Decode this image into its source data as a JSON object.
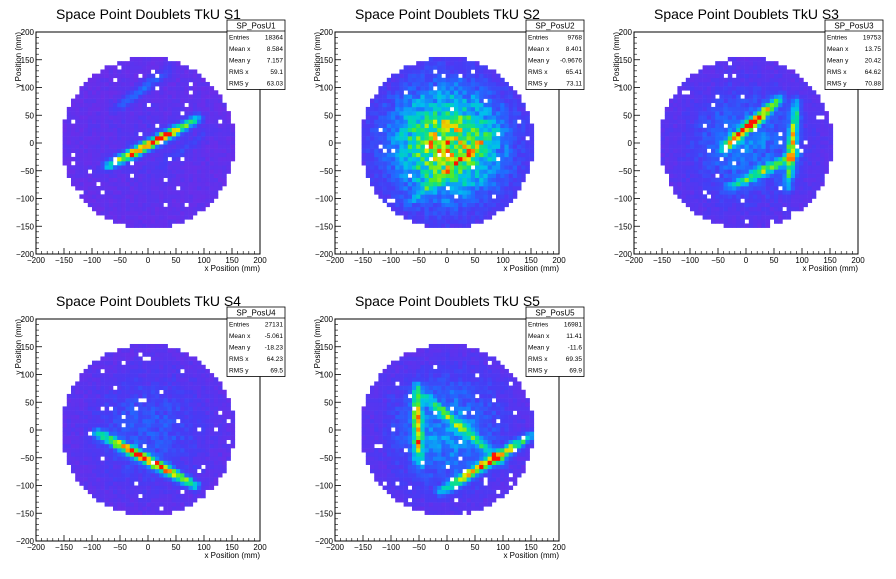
{
  "chart_data": [
    {
      "type": "heatmap",
      "title": "Space Point Doublets TkU S1",
      "xlabel": "x Position (mm)",
      "ylabel": "y Position (mm)",
      "xlim": [
        -200,
        200
      ],
      "ylim": [
        -200,
        200
      ],
      "xticks": [
        "−200",
        "−150",
        "−100",
        "−50",
        "0",
        "50",
        "100",
        "150",
        "200"
      ],
      "yticks": [
        "−200",
        "−150",
        "−100",
        "−50",
        "0",
        "50",
        "100",
        "150",
        "200"
      ],
      "stats": {
        "name": "SP_PosU1",
        "rows": [
          {
            "label": "Entries",
            "value": "18364"
          },
          {
            "label": "Mean x",
            "value": "8.584"
          },
          {
            "label": "Mean y",
            "value": "7.157"
          },
          {
            "label": "RMS x",
            "value": "59.1"
          },
          {
            "label": "RMS y",
            "value": "63.03"
          }
        ]
      },
      "features": [
        {
          "x1": -70,
          "y1": -40,
          "x2": 90,
          "y2": 45,
          "peak": 1.0
        },
        {
          "x1": -60,
          "y1": 60,
          "x2": 40,
          "y2": 135,
          "peak": 0.25
        },
        {
          "x1": -90,
          "y1": -50,
          "x2": 60,
          "y2": 20,
          "peak": 0.12
        },
        {
          "x1": 20,
          "y1": -40,
          "x2": 120,
          "y2": 30,
          "peak": 0.12
        }
      ],
      "center_level": 0.05
    },
    {
      "type": "heatmap",
      "title": "Space Point Doublets TkU S2",
      "xlabel": "x Position (mm)",
      "ylabel": "y Position (mm)",
      "xlim": [
        -200,
        200
      ],
      "ylim": [
        -200,
        200
      ],
      "xticks": [
        "−200",
        "−150",
        "−100",
        "−50",
        "0",
        "50",
        "100",
        "150",
        "200"
      ],
      "yticks": [
        "−200",
        "−150",
        "−100",
        "−50",
        "0",
        "50",
        "100",
        "150",
        "200"
      ],
      "stats": {
        "name": "SP_PosU2",
        "rows": [
          {
            "label": "Entries",
            "value": "9768"
          },
          {
            "label": "Mean x",
            "value": "8.401"
          },
          {
            "label": "Mean y",
            "value": "-0.9676"
          },
          {
            "label": "RMS x",
            "value": "65.41"
          },
          {
            "label": "RMS y",
            "value": "73.11"
          }
        ]
      },
      "features": [
        {
          "x1": -70,
          "y1": -110,
          "x2": 90,
          "y2": 25,
          "peak": 0.3
        }
      ],
      "center_level": 0.85
    },
    {
      "type": "heatmap",
      "title": "Space Point Doublets TkU S3",
      "xlabel": "x Position (mm)",
      "ylabel": "y Position (mm)",
      "xlim": [
        -200,
        200
      ],
      "ylim": [
        -200,
        200
      ],
      "xticks": [
        "−200",
        "−150",
        "−100",
        "−50",
        "0",
        "50",
        "100",
        "150",
        "200"
      ],
      "yticks": [
        "−200",
        "−150",
        "−100",
        "−50",
        "0",
        "50",
        "100",
        "150",
        "200"
      ],
      "stats": {
        "name": "SP_PosU3",
        "rows": [
          {
            "label": "Entries",
            "value": "19753"
          },
          {
            "label": "Mean x",
            "value": "13.75"
          },
          {
            "label": "Mean y",
            "value": "20.42"
          },
          {
            "label": "RMS x",
            "value": "64.62"
          },
          {
            "label": "RMS y",
            "value": "70.88"
          }
        ]
      },
      "features": [
        {
          "x1": -40,
          "y1": -10,
          "x2": 60,
          "y2": 80,
          "peak": 0.95
        },
        {
          "x1": 75,
          "y1": -80,
          "x2": 90,
          "y2": 75,
          "peak": 0.7
        },
        {
          "x1": -30,
          "y1": -80,
          "x2": 90,
          "y2": -20,
          "peak": 0.6
        }
      ],
      "center_level": 0.3
    },
    {
      "type": "heatmap",
      "title": "Space Point Doublets TkU S4",
      "xlabel": "x Position (mm)",
      "ylabel": "y Position (mm)",
      "xlim": [
        -200,
        200
      ],
      "ylim": [
        -200,
        200
      ],
      "xticks": [
        "−200",
        "−150",
        "−100",
        "−50",
        "0",
        "50",
        "100",
        "150",
        "200"
      ],
      "yticks": [
        "−200",
        "−150",
        "−100",
        "−50",
        "0",
        "50",
        "100",
        "150",
        "200"
      ],
      "stats": {
        "name": "SP_PosU4",
        "rows": [
          {
            "label": "Entries",
            "value": "27131"
          },
          {
            "label": "Mean x",
            "value": "-5.061"
          },
          {
            "label": "Mean y",
            "value": "-18.23"
          },
          {
            "label": "RMS x",
            "value": "64.23"
          },
          {
            "label": "RMS y",
            "value": "69.5"
          }
        ]
      },
      "features": [
        {
          "x1": -90,
          "y1": -5,
          "x2": 85,
          "y2": -100,
          "peak": 1.0
        }
      ],
      "center_level": 0.2
    },
    {
      "type": "heatmap",
      "title": "Space Point Doublets TkU S5",
      "xlabel": "x Position (mm)",
      "ylabel": "y Position (mm)",
      "xlim": [
        -200,
        200
      ],
      "ylim": [
        -200,
        200
      ],
      "xticks": [
        "−200",
        "−150",
        "−100",
        "−50",
        "0",
        "50",
        "100",
        "150",
        "200"
      ],
      "yticks": [
        "−200",
        "−150",
        "−100",
        "−50",
        "0",
        "50",
        "100",
        "150",
        "200"
      ],
      "stats": {
        "name": "SP_PosU5",
        "rows": [
          {
            "label": "Entries",
            "value": "16981"
          },
          {
            "label": "Mean x",
            "value": "11.41"
          },
          {
            "label": "Mean y",
            "value": "-11.6"
          },
          {
            "label": "RMS x",
            "value": "69.35"
          },
          {
            "label": "RMS y",
            "value": "69.9"
          }
        ]
      },
      "features": [
        {
          "x1": -55,
          "y1": 80,
          "x2": -50,
          "y2": -60,
          "peak": 0.7
        },
        {
          "x1": -10,
          "y1": -110,
          "x2": 150,
          "y2": -10,
          "peak": 0.9
        },
        {
          "x1": -50,
          "y1": 70,
          "x2": 100,
          "y2": -60,
          "peak": 0.45
        }
      ],
      "center_level": 0.35
    }
  ]
}
